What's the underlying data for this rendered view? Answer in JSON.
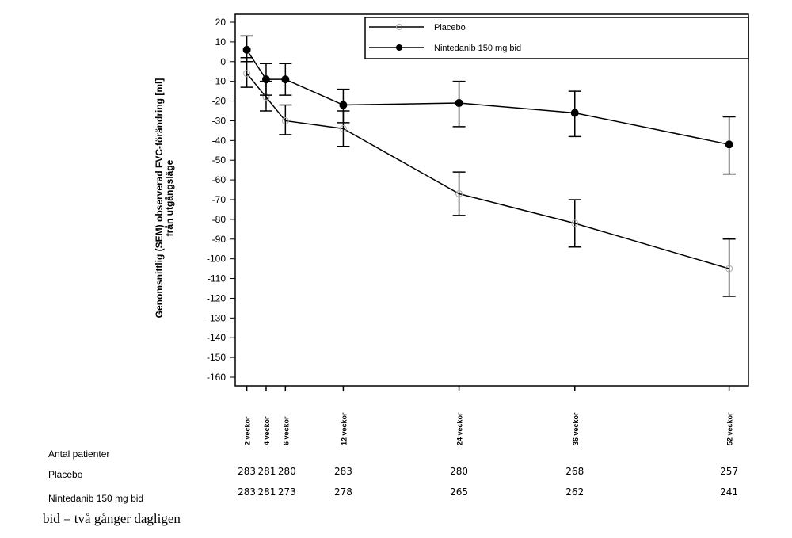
{
  "chart_data": {
    "type": "line",
    "ylabel_line1": "Genomsnittlig (SEM) observerad FVC-förändring [ml]",
    "ylabel_line2": "från utgångsläge",
    "ylim": [
      -160,
      20
    ],
    "yticks": [
      20,
      10,
      0,
      -10,
      -20,
      -30,
      -40,
      -50,
      -60,
      -70,
      -80,
      -90,
      -100,
      -110,
      -120,
      -130,
      -140,
      -150,
      -160
    ],
    "x": [
      2,
      4,
      6,
      12,
      24,
      36,
      52
    ],
    "xlim": [
      0.8,
      54
    ],
    "xtick_labels": [
      "2 veckor",
      "4 veckor",
      "6 veckor",
      "12 veckor",
      "24 veckor",
      "36 veckor",
      "52 veckor"
    ],
    "series": [
      {
        "name": "Placebo",
        "marker": "open-circle",
        "values": [
          -6,
          -18,
          -30,
          -34,
          -67,
          -82,
          -105
        ],
        "err_low": [
          -13,
          -25,
          -37,
          -43,
          -78,
          -94,
          -119
        ],
        "err_high": [
          2,
          -10,
          -22,
          -25,
          -56,
          -70,
          -90
        ]
      },
      {
        "name": "Nintedanib 150 mg bid",
        "marker": "filled-circle",
        "values": [
          6,
          -9,
          -9,
          -22,
          -21,
          -26,
          -42
        ],
        "err_low": [
          0,
          -17,
          -17,
          -31,
          -33,
          -38,
          -57
        ],
        "err_high": [
          13,
          -1,
          -1,
          -14,
          -10,
          -15,
          -28
        ]
      }
    ],
    "legend": "top-right"
  },
  "patients": {
    "title": "Antal patienter",
    "rows": [
      {
        "label": "Placebo",
        "values": [
          "283",
          "281",
          "280",
          "283",
          "280",
          "268",
          "257"
        ]
      },
      {
        "label": "Nintedanib 150 mg bid",
        "values": [
          "283",
          "281",
          "273",
          "278",
          "265",
          "262",
          "241"
        ]
      }
    ]
  },
  "footnote": "bid = två gånger dagligen"
}
